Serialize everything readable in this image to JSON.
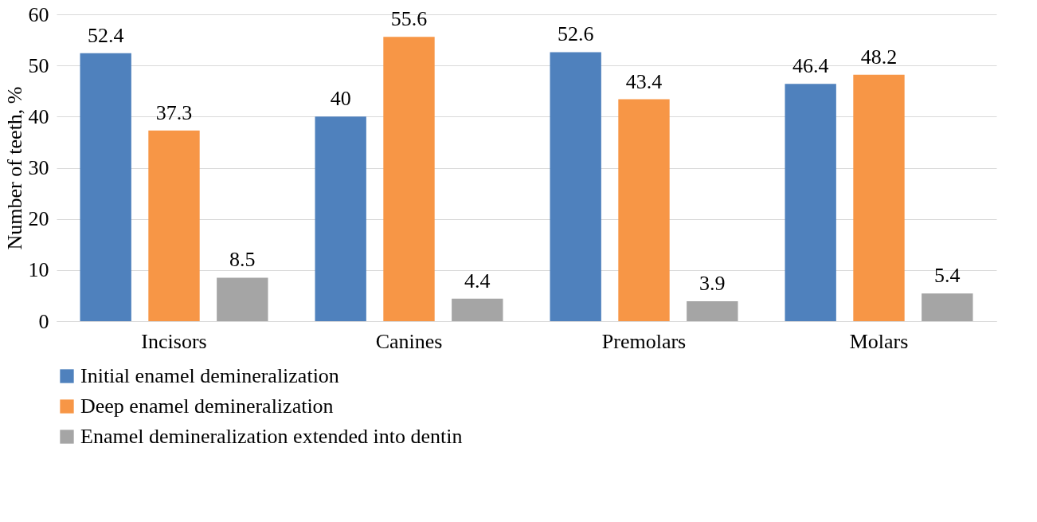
{
  "chart_data": {
    "type": "bar",
    "ylabel": "Number of teeth, %",
    "categories": [
      "Incisors",
      "Canines",
      "Premolars",
      "Molars"
    ],
    "series": [
      {
        "name": "Initial enamel demineralization",
        "color": "#4f81bd",
        "values": [
          52.4,
          40,
          52.6,
          46.4
        ]
      },
      {
        "name": "Deep enamel demineralization",
        "color": "#f79646",
        "values": [
          37.3,
          55.6,
          43.4,
          48.2
        ]
      },
      {
        "name": "Enamel demineralization extended into dentin",
        "color": "#a5a5a5",
        "values": [
          8.5,
          4.4,
          3.9,
          5.4
        ]
      }
    ],
    "ylim": [
      0,
      60
    ],
    "yticks": [
      0,
      10,
      20,
      30,
      40,
      50,
      60
    ],
    "grid": "y",
    "legend": "bottom",
    "data_labels": true
  }
}
